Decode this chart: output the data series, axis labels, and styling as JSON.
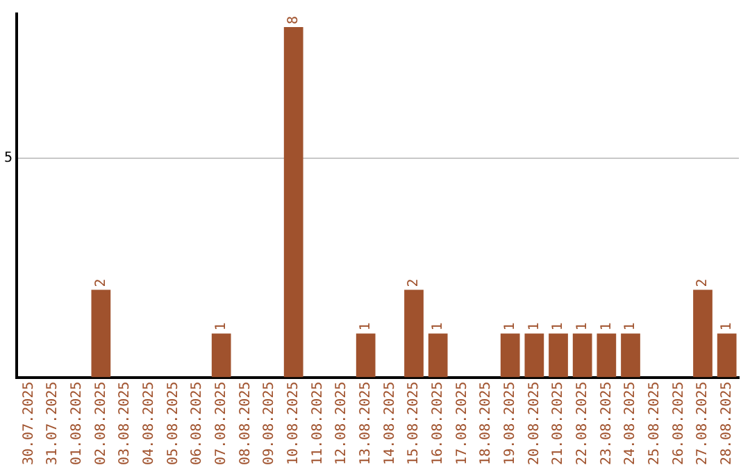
{
  "chart_data": {
    "type": "bar",
    "categories": [
      "30.07.2025",
      "31.07.2025",
      "01.08.2025",
      "02.08.2025",
      "03.08.2025",
      "04.08.2025",
      "05.08.2025",
      "06.08.2025",
      "07.08.2025",
      "08.08.2025",
      "09.08.2025",
      "10.08.2025",
      "11.08.2025",
      "12.08.2025",
      "13.08.2025",
      "14.08.2025",
      "15.08.2025",
      "16.08.2025",
      "17.08.2025",
      "18.08.2025",
      "19.08.2025",
      "20.08.2025",
      "21.08.2025",
      "22.08.2025",
      "23.08.2025",
      "24.08.2025",
      "25.08.2025",
      "26.08.2025",
      "27.08.2025",
      "28.08.2025"
    ],
    "values": [
      0,
      0,
      0,
      2,
      0,
      0,
      0,
      0,
      1,
      0,
      0,
      8,
      0,
      0,
      1,
      0,
      2,
      1,
      0,
      0,
      1,
      1,
      1,
      1,
      1,
      1,
      0,
      0,
      2,
      1
    ],
    "value_labels": [
      null,
      null,
      null,
      "2",
      null,
      null,
      null,
      null,
      "1",
      null,
      null,
      "8",
      null,
      null,
      "1",
      null,
      "2",
      "1",
      null,
      null,
      "1",
      "1",
      "1",
      "1",
      "1",
      "1",
      null,
      null,
      "2",
      "1"
    ],
    "color": "#a0522d",
    "ylim": [
      0,
      8.3
    ],
    "yticks": [
      5
    ],
    "grid": "y",
    "legend": false
  }
}
